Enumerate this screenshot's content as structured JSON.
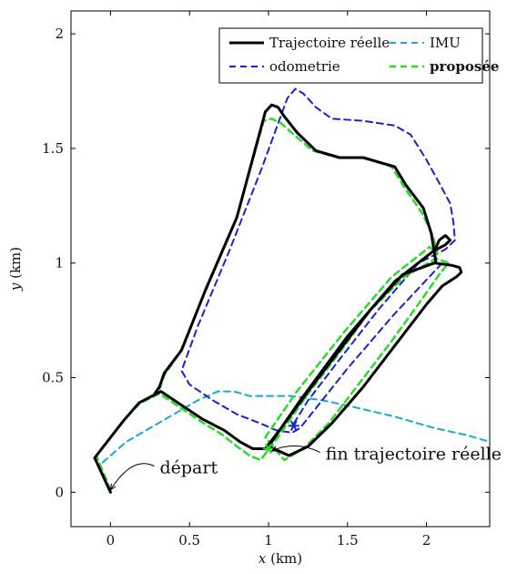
{
  "chart_data": {
    "type": "line",
    "title": "",
    "xlabel": {
      "var": "x",
      "unit": " (km)"
    },
    "ylabel": {
      "var": "y",
      "unit": " (km)"
    },
    "xlim": [
      -0.25,
      2.4
    ],
    "ylim": [
      -0.15,
      2.1
    ],
    "xticks": [
      {
        "v": 0,
        "label": "0"
      },
      {
        "v": 0.5,
        "label": "0.5"
      },
      {
        "v": 1,
        "label": "1"
      },
      {
        "v": 1.5,
        "label": "1.5"
      },
      {
        "v": 2,
        "label": "2"
      }
    ],
    "yticks": [
      {
        "v": 0,
        "label": "0"
      },
      {
        "v": 0.5,
        "label": "0.5"
      },
      {
        "v": 1,
        "label": "1"
      },
      {
        "v": 1.5,
        "label": "1.5"
      },
      {
        "v": 2,
        "label": "2"
      }
    ],
    "grid": false,
    "legend_position": "top-right",
    "series": [
      {
        "name": "Trajectoire réelle",
        "color": "#000000",
        "style": "solid",
        "width": 3,
        "bold": false,
        "points": [
          [
            0,
            0
          ],
          [
            -0.1,
            0.15
          ],
          [
            0.08,
            0.31
          ],
          [
            0.18,
            0.39
          ],
          [
            0.32,
            0.44
          ],
          [
            0.45,
            0.38
          ],
          [
            0.58,
            0.32
          ],
          [
            0.72,
            0.27
          ],
          [
            0.82,
            0.22
          ],
          [
            0.9,
            0.19
          ],
          [
            0.98,
            0.19
          ],
          [
            1.08,
            0.28
          ],
          [
            1.25,
            0.44
          ],
          [
            1.45,
            0.62
          ],
          [
            1.65,
            0.8
          ],
          [
            1.85,
            0.95
          ],
          [
            2.05,
            1.0
          ],
          [
            2.16,
            0.99
          ],
          [
            2.21,
            0.98
          ],
          [
            2.22,
            0.96
          ],
          [
            2.19,
            0.94
          ],
          [
            2.1,
            0.9
          ],
          [
            2.0,
            0.82
          ],
          [
            1.8,
            0.64
          ],
          [
            1.6,
            0.46
          ],
          [
            1.4,
            0.3
          ],
          [
            1.25,
            0.2
          ],
          [
            1.13,
            0.16
          ],
          [
            1.0,
            0.2
          ],
          [
            1.2,
            0.4
          ],
          [
            1.5,
            0.68
          ],
          [
            1.8,
            0.92
          ],
          [
            2.04,
            1.05
          ],
          [
            2.12,
            1.08
          ],
          [
            2.15,
            1.1
          ],
          [
            2.12,
            1.12
          ],
          [
            2.08,
            1.1
          ],
          [
            2.05,
            1.05
          ],
          [
            2.06,
            1.0
          ],
          [
            2.03,
            1.13
          ],
          [
            1.98,
            1.24
          ],
          [
            1.87,
            1.34
          ],
          [
            1.8,
            1.42
          ],
          [
            1.6,
            1.46
          ],
          [
            1.45,
            1.46
          ],
          [
            1.3,
            1.49
          ],
          [
            1.18,
            1.57
          ],
          [
            1.1,
            1.64
          ],
          [
            1.06,
            1.68
          ],
          [
            1.02,
            1.69
          ],
          [
            0.98,
            1.66
          ],
          [
            0.8,
            1.2
          ],
          [
            0.6,
            0.88
          ],
          [
            0.45,
            0.62
          ],
          [
            0.34,
            0.52
          ],
          [
            0.31,
            0.46
          ],
          [
            0.28,
            0.43
          ]
        ]
      },
      {
        "name": "IMU",
        "color": "#1aa7d8",
        "style": "dashed",
        "width": 2,
        "bold": false,
        "points": [
          [
            -0.05,
            0.13
          ],
          [
            0.1,
            0.22
          ],
          [
            0.25,
            0.28
          ],
          [
            0.4,
            0.34
          ],
          [
            0.55,
            0.4
          ],
          [
            0.68,
            0.44
          ],
          [
            0.78,
            0.44
          ],
          [
            0.88,
            0.42
          ],
          [
            1.0,
            0.42
          ],
          [
            1.15,
            0.42
          ],
          [
            1.35,
            0.4
          ],
          [
            1.55,
            0.37
          ],
          [
            1.8,
            0.33
          ],
          [
            2.05,
            0.28
          ],
          [
            2.25,
            0.25
          ],
          [
            2.4,
            0.22
          ]
        ]
      },
      {
        "name": "odometrie",
        "color": "#1f1fd0",
        "style": "dashed",
        "width": 2,
        "bold": false,
        "points": [
          [
            1.16,
            0.3
          ],
          [
            1.25,
            0.4
          ],
          [
            1.45,
            0.58
          ],
          [
            1.7,
            0.8
          ],
          [
            1.95,
            1.0
          ],
          [
            2.12,
            1.06
          ],
          [
            2.18,
            1.1
          ],
          [
            2.17,
            1.18
          ],
          [
            2.15,
            1.26
          ],
          [
            2.08,
            1.35
          ],
          [
            2.0,
            1.45
          ],
          [
            1.9,
            1.56
          ],
          [
            1.8,
            1.6
          ],
          [
            1.6,
            1.62
          ],
          [
            1.4,
            1.63
          ],
          [
            1.3,
            1.68
          ],
          [
            1.22,
            1.74
          ],
          [
            1.17,
            1.76
          ],
          [
            1.12,
            1.72
          ],
          [
            0.95,
            1.4
          ],
          [
            0.75,
            1.05
          ],
          [
            0.55,
            0.72
          ],
          [
            0.45,
            0.53
          ],
          [
            0.5,
            0.47
          ],
          [
            0.65,
            0.4
          ],
          [
            0.8,
            0.34
          ],
          [
            0.95,
            0.3
          ],
          [
            1.05,
            0.27
          ],
          [
            1.15,
            0.26
          ],
          [
            1.2,
            0.28
          ],
          [
            1.5,
            0.54
          ],
          [
            1.8,
            0.78
          ],
          [
            2.1,
            1.0
          ]
        ]
      },
      {
        "name": "proposée",
        "color": "#22dd22",
        "style": "dashed",
        "width": 2.4,
        "bold": true,
        "points": [
          [
            0,
            0.01
          ],
          [
            -0.09,
            0.16
          ],
          [
            0.09,
            0.32
          ],
          [
            0.19,
            0.39
          ],
          [
            0.31,
            0.43
          ],
          [
            0.44,
            0.37
          ],
          [
            0.57,
            0.31
          ],
          [
            0.71,
            0.25
          ],
          [
            0.8,
            0.2
          ],
          [
            0.88,
            0.16
          ],
          [
            0.95,
            0.14
          ],
          [
            1.06,
            0.24
          ],
          [
            1.24,
            0.42
          ],
          [
            1.44,
            0.6
          ],
          [
            1.64,
            0.79
          ],
          [
            1.86,
            0.94
          ],
          [
            2.06,
            1.02
          ],
          [
            2.14,
            1.0
          ],
          [
            2.08,
            0.95
          ],
          [
            1.98,
            0.85
          ],
          [
            1.78,
            0.66
          ],
          [
            1.58,
            0.48
          ],
          [
            1.38,
            0.3
          ],
          [
            1.22,
            0.19
          ],
          [
            1.1,
            0.14
          ],
          [
            0.98,
            0.24
          ],
          [
            1.18,
            0.44
          ],
          [
            1.48,
            0.7
          ],
          [
            1.78,
            0.94
          ],
          [
            2.02,
            1.07
          ],
          [
            2.07,
            1.04
          ],
          [
            2.04,
            1.12
          ],
          [
            1.97,
            1.22
          ],
          [
            1.86,
            1.33
          ],
          [
            1.78,
            1.42
          ],
          [
            1.6,
            1.46
          ],
          [
            1.44,
            1.46
          ],
          [
            1.28,
            1.49
          ],
          [
            1.16,
            1.56
          ],
          [
            1.08,
            1.61
          ],
          [
            1.02,
            1.63
          ],
          [
            0.97,
            1.62
          ],
          [
            0.79,
            1.18
          ],
          [
            0.59,
            0.86
          ],
          [
            0.44,
            0.61
          ],
          [
            0.34,
            0.51
          ],
          [
            0.31,
            0.45
          ],
          [
            0.27,
            0.42
          ]
        ]
      }
    ],
    "markers": [
      {
        "x": 1.16,
        "y": 0.29,
        "color": "#1f1fd0",
        "glyph": "*"
      },
      {
        "x": 1.0,
        "y": 0.19,
        "color": "#22dd22",
        "glyph": "*"
      }
    ],
    "annotations": [
      {
        "text": "départ",
        "text_x": 0.3,
        "text_y": 0.09,
        "target_x": 0.0,
        "target_y": 0.01
      },
      {
        "text": "fin trajectoire réelle",
        "text_x": 1.35,
        "text_y": 0.15,
        "target_x": 1.02,
        "target_y": 0.18
      }
    ]
  }
}
